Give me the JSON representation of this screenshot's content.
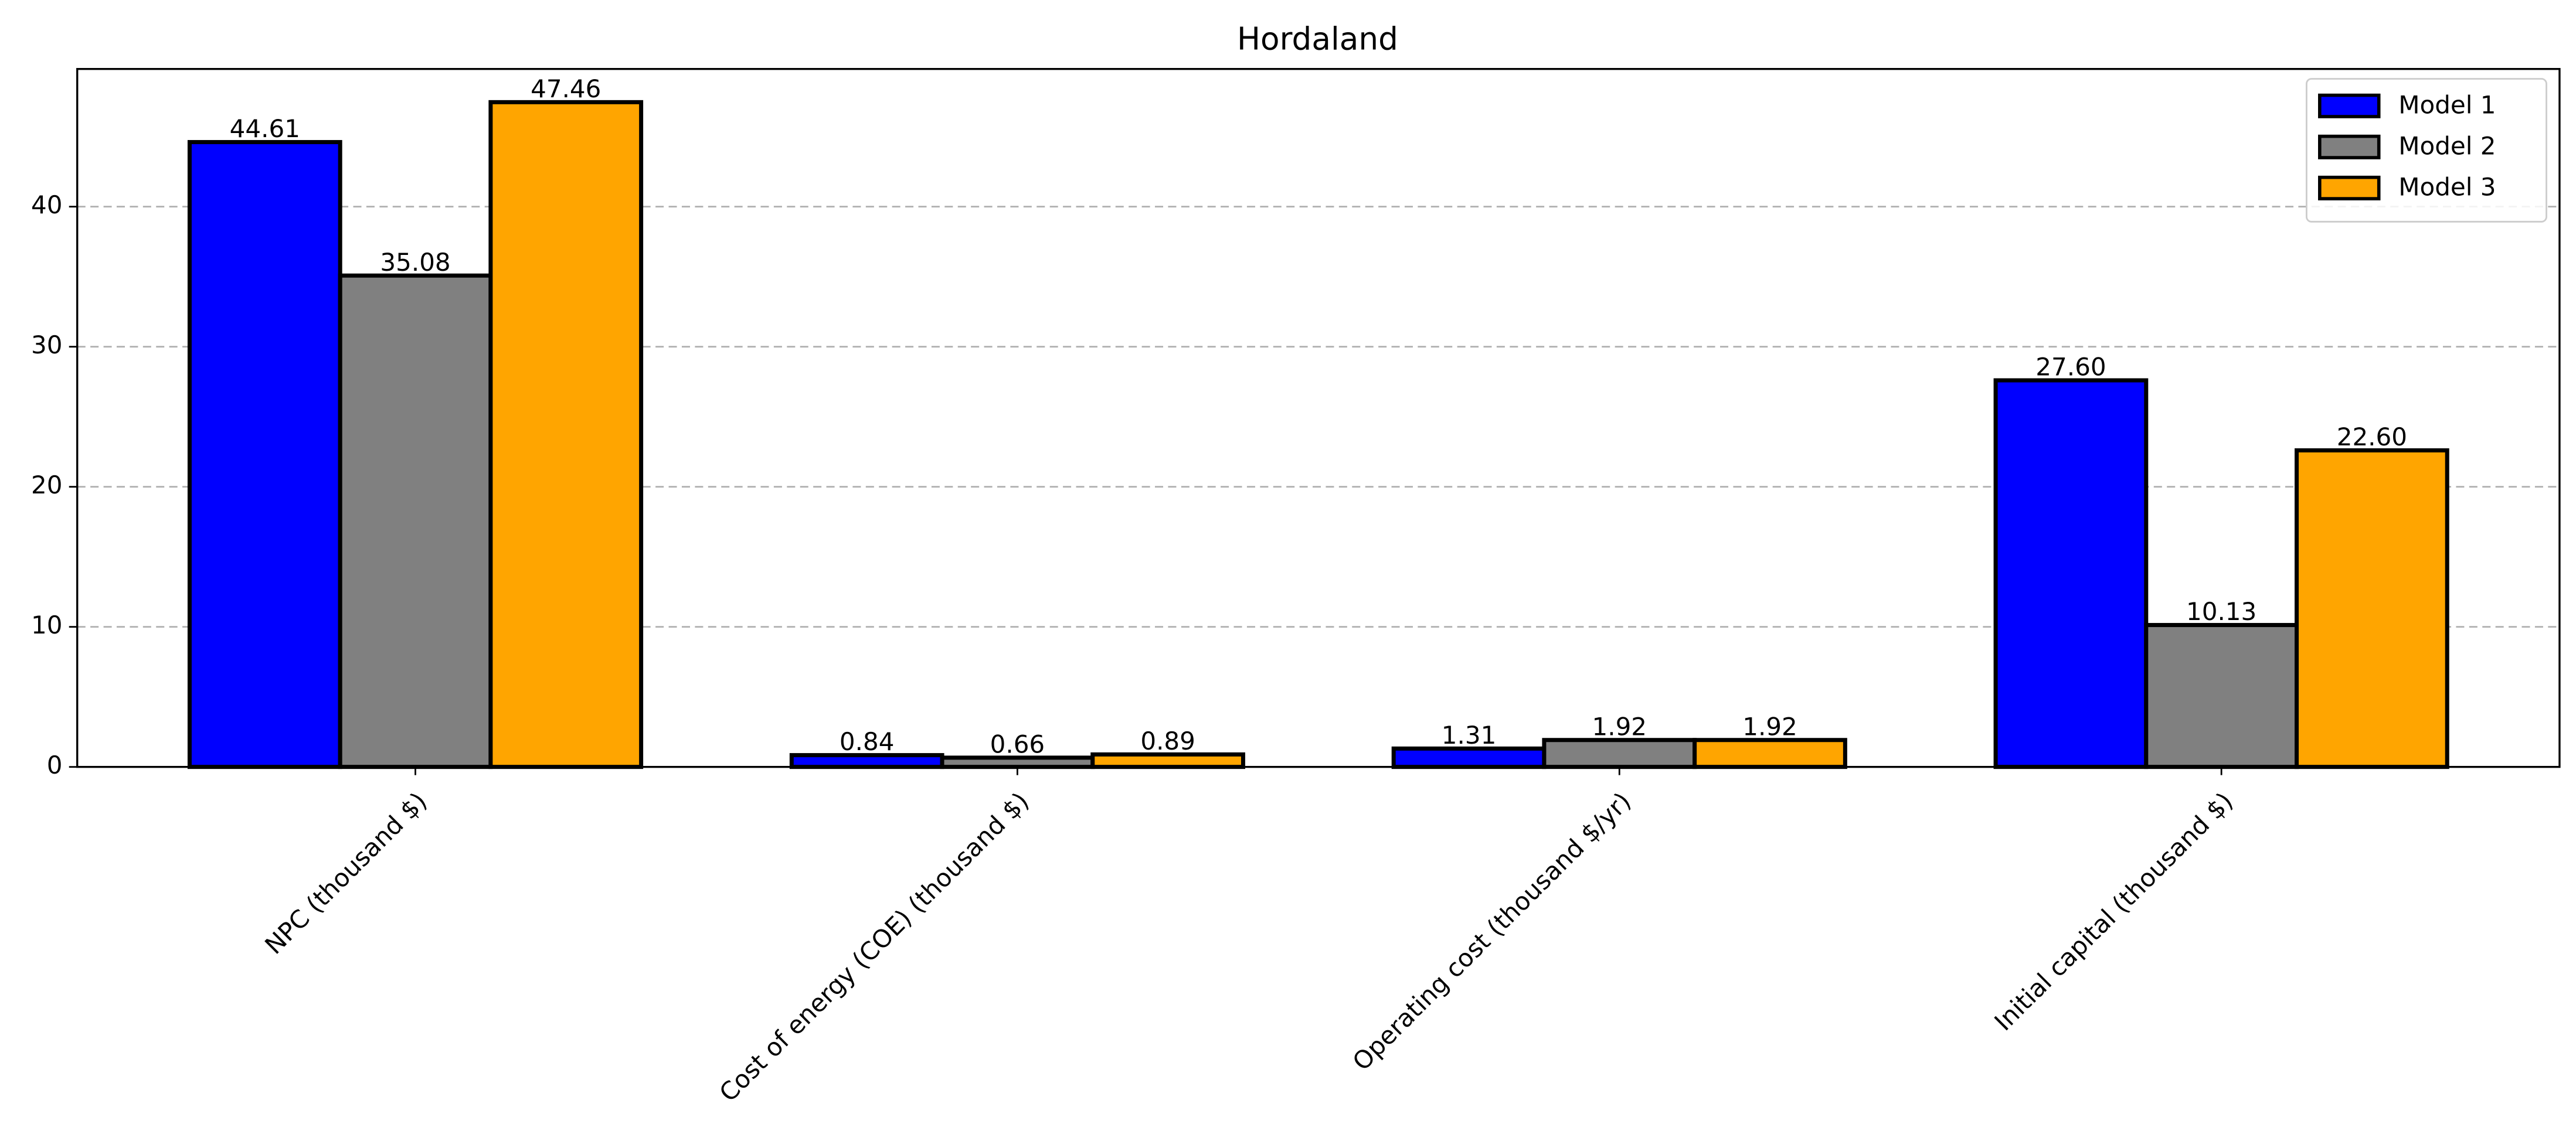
{
  "chart_data": {
    "type": "bar",
    "title": "Hordaland",
    "categories": [
      "NPC (thousand $)",
      "Cost of energy (COE) (thousand $)",
      "Operating cost (thousand $/yr)",
      "Initial capital (thousand $)"
    ],
    "series": [
      {
        "name": "Model 1",
        "color": "#0000ff",
        "values": [
          44.61,
          0.84,
          1.31,
          27.6
        ],
        "value_labels": [
          "44.61",
          "0.84",
          "1.31",
          "27.60"
        ]
      },
      {
        "name": "Model 2",
        "color": "#808080",
        "values": [
          35.08,
          0.66,
          1.92,
          10.13
        ],
        "value_labels": [
          "35.08",
          "0.66",
          "1.92",
          "10.13"
        ]
      },
      {
        "name": "Model 3",
        "color": "#ffa500",
        "values": [
          47.46,
          0.89,
          1.92,
          22.6
        ],
        "value_labels": [
          "47.46",
          "0.89",
          "1.92",
          "22.60"
        ]
      }
    ],
    "ylim": [
      0,
      49.83
    ],
    "yticks": [
      0,
      10,
      20,
      30,
      40
    ],
    "grid": true,
    "legend": "upper right"
  }
}
